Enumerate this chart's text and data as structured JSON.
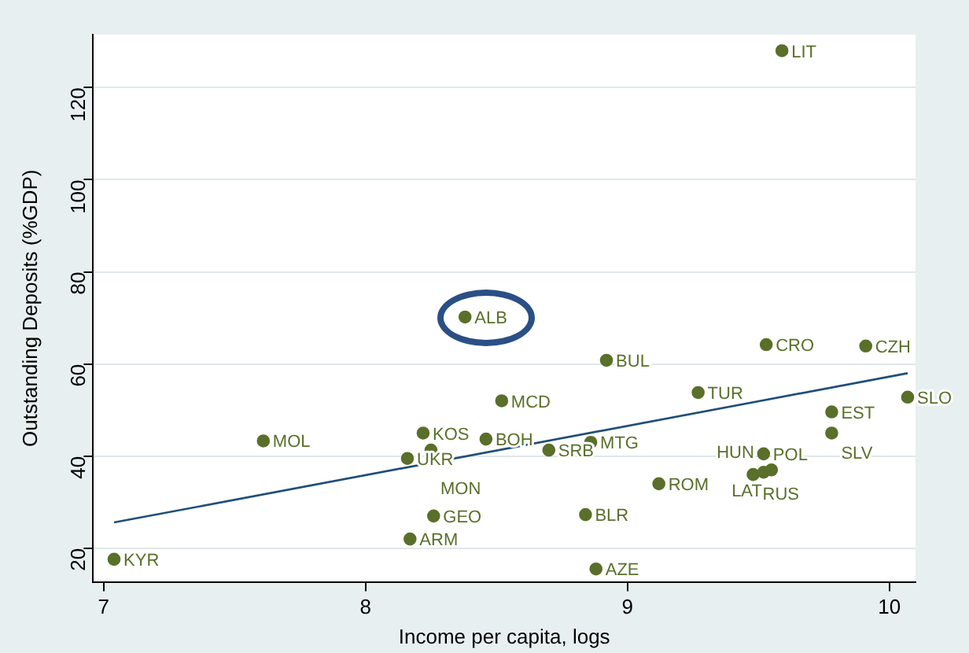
{
  "chart_data": {
    "type": "scatter",
    "xlabel": "Income per capita, logs",
    "ylabel": "Outstanding Deposits (%GDP)",
    "xlim": [
      6.96,
      10.1
    ],
    "ylim": [
      12.7,
      131.5
    ],
    "xticks": [
      7,
      8,
      9,
      10
    ],
    "yticks": [
      20,
      40,
      60,
      80,
      100,
      120
    ],
    "grid": "y",
    "legend": false,
    "marker": "circle",
    "series": [
      {
        "color": "#5a6f2a",
        "x": [
          7.04,
          7.61,
          8.16,
          8.22,
          8.25,
          8.46,
          8.38,
          8.52,
          8.26,
          8.17,
          8.7,
          8.86,
          8.92,
          8.84,
          8.88,
          9.12,
          9.27,
          9.53,
          9.52,
          9.48,
          9.55,
          9.52,
          9.78,
          9.78,
          9.91,
          10.07,
          9.59
        ],
        "values": [
          17.6,
          43.3,
          39.5,
          45,
          41.3,
          43.7,
          70.2,
          52,
          27,
          22,
          41.3,
          43,
          60.8,
          27.3,
          15.5,
          34,
          53.8,
          64.2,
          40.5,
          36,
          37,
          36.5,
          49.6,
          45,
          63.9,
          52.8,
          128
        ]
      },
      {
        "type": "line",
        "color": "#1f4e79",
        "marker": "none",
        "x": [
          7.04,
          10.07
        ],
        "values": [
          25.6,
          58
        ]
      }
    ],
    "annotations": [
      {
        "text": "KYR",
        "x": 7.04,
        "y": 17.6
      },
      {
        "text": "MOL",
        "x": 7.61,
        "y": 43.3
      },
      {
        "text": "UKR",
        "x": 8.16,
        "y": 39.5
      },
      {
        "text": "KOS",
        "x": 8.22,
        "y": 45
      },
      {
        "text": "MON",
        "x": 8.25,
        "y": 41.3
      },
      {
        "text": "BOH",
        "x": 8.46,
        "y": 43.7
      },
      {
        "text": "ALB",
        "x": 8.38,
        "y": 70.2
      },
      {
        "text": "MCD",
        "x": 8.52,
        "y": 52
      },
      {
        "text": "GEO",
        "x": 8.26,
        "y": 27
      },
      {
        "text": "ARM",
        "x": 8.17,
        "y": 22
      },
      {
        "text": "SRB",
        "x": 8.7,
        "y": 41.3
      },
      {
        "text": "MTG",
        "x": 8.86,
        "y": 43
      },
      {
        "text": "BUL",
        "x": 8.92,
        "y": 60.8
      },
      {
        "text": "BLR",
        "x": 8.84,
        "y": 27.3
      },
      {
        "text": "AZE",
        "x": 8.88,
        "y": 15.5
      },
      {
        "text": "ROM",
        "x": 9.12,
        "y": 34
      },
      {
        "text": "TUR",
        "x": 9.27,
        "y": 53.8
      },
      {
        "text": "CRO",
        "x": 9.53,
        "y": 64.2
      },
      {
        "text": "POL",
        "x": 9.52,
        "y": 40.5
      },
      {
        "text": "RUS",
        "x": 9.48,
        "y": 36
      },
      {
        "text": "LAT",
        "x": 9.55,
        "y": 37
      },
      {
        "text": "HUN",
        "x": 9.52,
        "y": 36.5
      },
      {
        "text": "EST",
        "x": 9.78,
        "y": 49.6
      },
      {
        "text": "SLV",
        "x": 9.78,
        "y": 45
      },
      {
        "text": "CZH",
        "x": 9.91,
        "y": 63.9
      },
      {
        "text": "SLO",
        "x": 10.07,
        "y": 52.8
      },
      {
        "text": "LIT",
        "x": 9.59,
        "y": 128
      }
    ]
  }
}
